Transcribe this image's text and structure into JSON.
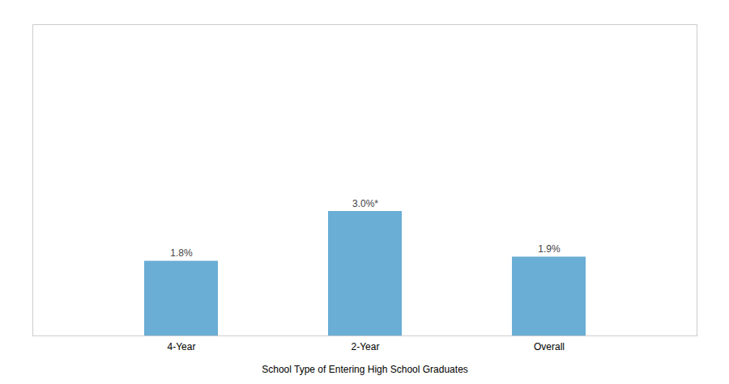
{
  "chart_data": {
    "type": "bar",
    "categories": [
      "4-Year",
      "2-Year",
      "Overall"
    ],
    "values": [
      1.8,
      3.0,
      1.9
    ],
    "value_labels": [
      "1.8%",
      "3.0%*",
      "1.9%"
    ],
    "color": "#6aadd5",
    "xlabel": "School Type of Entering High School Graduates",
    "ylim": [
      0,
      7.5
    ],
    "data_labels": true,
    "tick_labels": "x",
    "grid": false
  }
}
